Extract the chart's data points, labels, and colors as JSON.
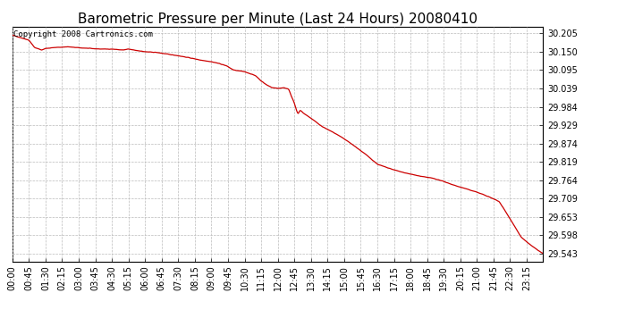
{
  "title": "Barometric Pressure per Minute (Last 24 Hours) 20080410",
  "copyright": "Copyright 2008 Cartronics.com",
  "line_color": "#cc0000",
  "background_color": "#ffffff",
  "grid_color": "#bbbbbb",
  "yticks": [
    29.543,
    29.598,
    29.653,
    29.709,
    29.764,
    29.819,
    29.874,
    29.929,
    29.984,
    30.039,
    30.095,
    30.15,
    30.205
  ],
  "ylim": [
    29.52,
    30.225
  ],
  "x_labels": [
    "00:00",
    "00:45",
    "01:30",
    "02:15",
    "03:00",
    "03:45",
    "04:30",
    "05:15",
    "06:00",
    "06:45",
    "07:30",
    "08:15",
    "09:00",
    "09:45",
    "10:30",
    "11:15",
    "12:00",
    "12:45",
    "13:30",
    "14:15",
    "15:00",
    "15:45",
    "16:30",
    "17:15",
    "18:00",
    "18:45",
    "19:30",
    "20:15",
    "21:00",
    "21:45",
    "22:30",
    "23:15"
  ],
  "title_fontsize": 11,
  "tick_fontsize": 7,
  "copyright_fontsize": 6.5,
  "control_t": [
    0,
    45,
    60,
    80,
    90,
    120,
    150,
    180,
    210,
    240,
    270,
    300,
    315,
    330,
    360,
    390,
    420,
    450,
    480,
    510,
    540,
    560,
    580,
    600,
    630,
    650,
    660,
    675,
    690,
    705,
    720,
    735,
    750,
    755,
    760,
    765,
    770,
    775,
    780,
    790,
    810,
    840,
    870,
    900,
    930,
    960,
    990,
    1020,
    1050,
    1080,
    1110,
    1140,
    1170,
    1200,
    1230,
    1260,
    1290,
    1320,
    1350,
    1380,
    1410,
    1439
  ],
  "control_p": [
    30.2,
    30.185,
    30.163,
    30.155,
    30.16,
    30.163,
    30.165,
    30.162,
    30.16,
    30.158,
    30.158,
    30.155,
    30.158,
    30.155,
    30.15,
    30.148,
    30.143,
    30.138,
    30.132,
    30.125,
    30.12,
    30.115,
    30.108,
    30.095,
    30.09,
    30.082,
    30.078,
    30.062,
    30.05,
    30.042,
    30.04,
    30.042,
    30.038,
    30.02,
    30.008,
    29.995,
    29.975,
    29.962,
    29.975,
    29.965,
    29.95,
    29.925,
    29.908,
    29.888,
    29.865,
    29.84,
    29.812,
    29.8,
    29.79,
    29.782,
    29.775,
    29.77,
    29.76,
    29.748,
    29.738,
    29.728,
    29.715,
    29.7,
    29.648,
    29.592,
    29.565,
    29.543
  ]
}
